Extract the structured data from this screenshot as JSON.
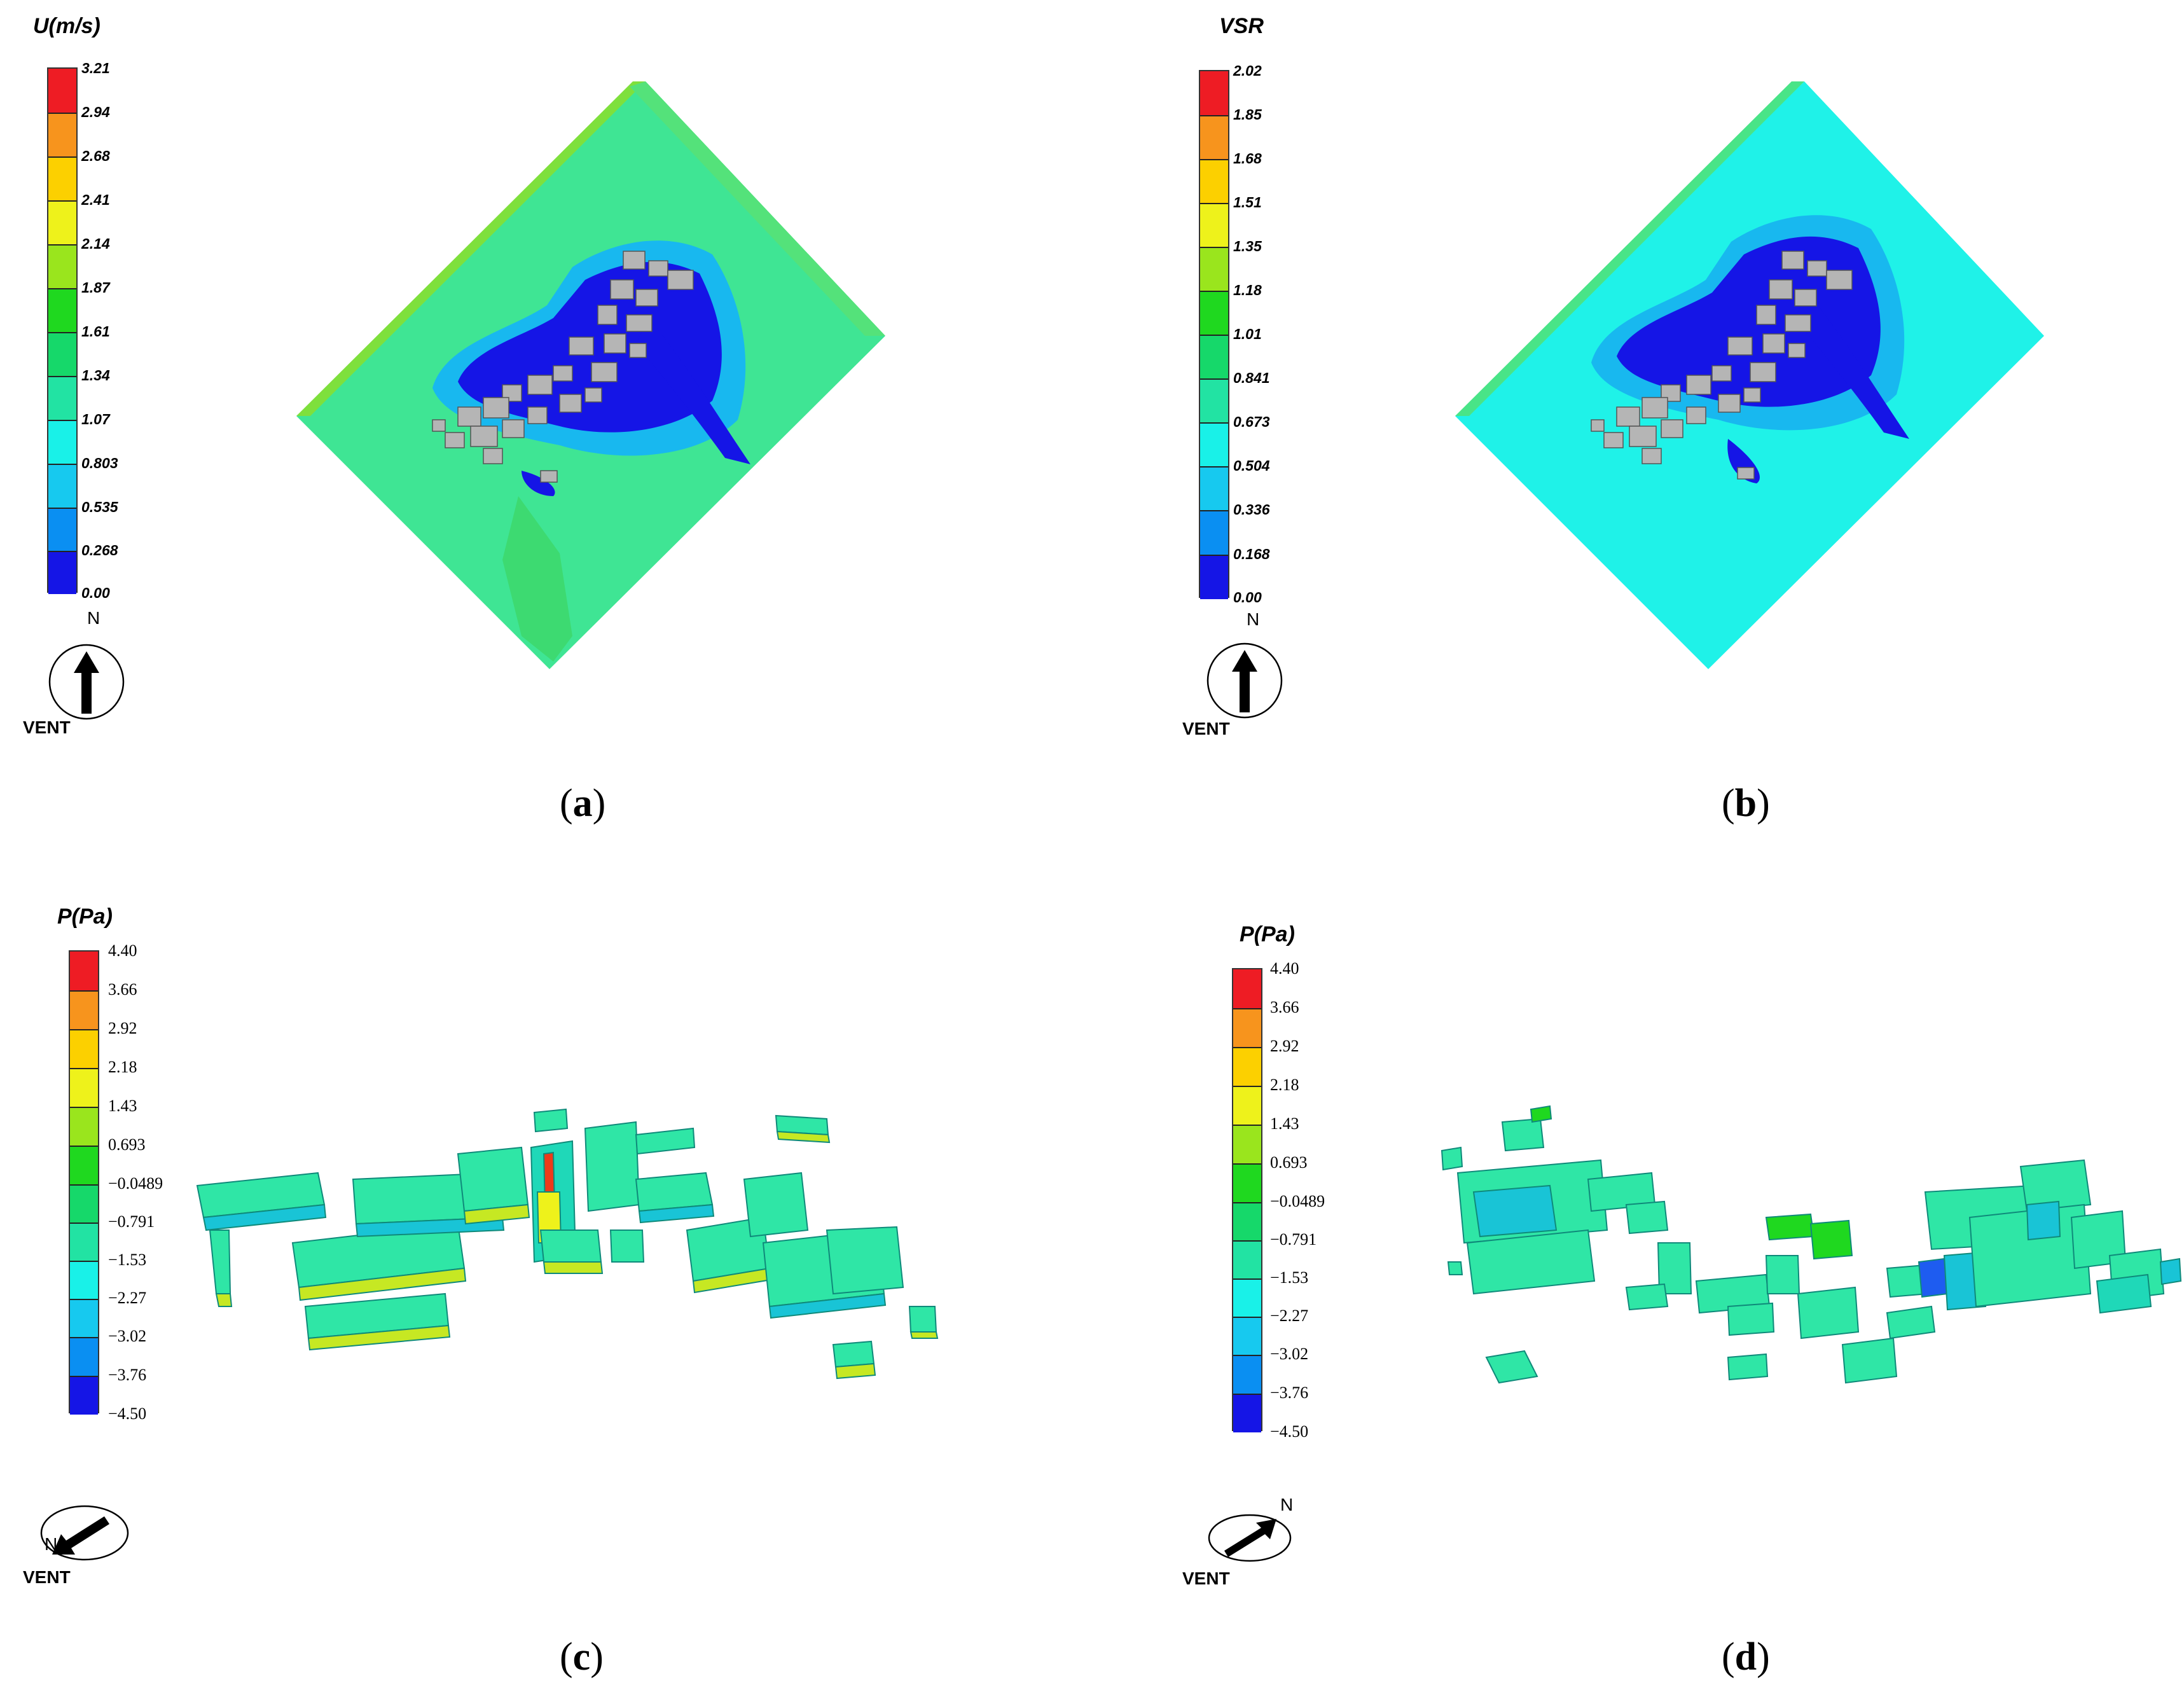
{
  "panels": [
    {
      "id": "a",
      "caption_letter": "a",
      "legend": {
        "title": "U(m/s)",
        "ticks": [
          "3.21",
          "2.94",
          "2.68",
          "2.41",
          "2.14",
          "1.87",
          "1.61",
          "1.34",
          "1.07",
          "0.803",
          "0.535",
          "0.268",
          "0.00"
        ]
      },
      "compass": {
        "north_label": "N",
        "vent_label": "VENT",
        "arrow": "up"
      }
    },
    {
      "id": "b",
      "caption_letter": "b",
      "legend": {
        "title": "VSR",
        "ticks": [
          "2.02",
          "1.85",
          "1.68",
          "1.51",
          "1.35",
          "1.18",
          "1.01",
          "0.841",
          "0.673",
          "0.504",
          "0.336",
          "0.168",
          "0.00"
        ]
      },
      "compass": {
        "north_label": "N",
        "vent_label": "VENT",
        "arrow": "up"
      }
    },
    {
      "id": "c",
      "caption_letter": "c",
      "legend": {
        "title": "P(Pa)",
        "ticks": [
          "4.40",
          "3.66",
          "2.92",
          "2.18",
          "1.43",
          "0.693",
          "−0.0489",
          "−0.791",
          "−1.53",
          "−2.27",
          "−3.02",
          "−3.76",
          "−4.50"
        ]
      },
      "compass": {
        "north_label": "N",
        "vent_label": "VENT",
        "arrow": "down-left"
      }
    },
    {
      "id": "d",
      "caption_letter": "d",
      "legend": {
        "title": "P(Pa)",
        "ticks": [
          "4.40",
          "3.66",
          "2.92",
          "2.18",
          "1.43",
          "0.693",
          "−0.0489",
          "−0.791",
          "−1.53",
          "−2.27",
          "−3.02",
          "−3.76",
          "−4.50"
        ]
      },
      "compass": {
        "north_label": "N",
        "vent_label": "VENT",
        "arrow": "up-right"
      }
    }
  ],
  "colors": {
    "scale": [
      "#ee1c24",
      "#f7941d",
      "#fcd000",
      "#eef21b",
      "#9ae51d",
      "#1fd81f",
      "#16d86a",
      "#22e3a3",
      "#19f1e8",
      "#17c9ef",
      "#0a8ff2",
      "#1515e6"
    ],
    "building": "#b5b5b5",
    "ground_a": "#3ee894",
    "ground_b": "#1ef0ec"
  }
}
